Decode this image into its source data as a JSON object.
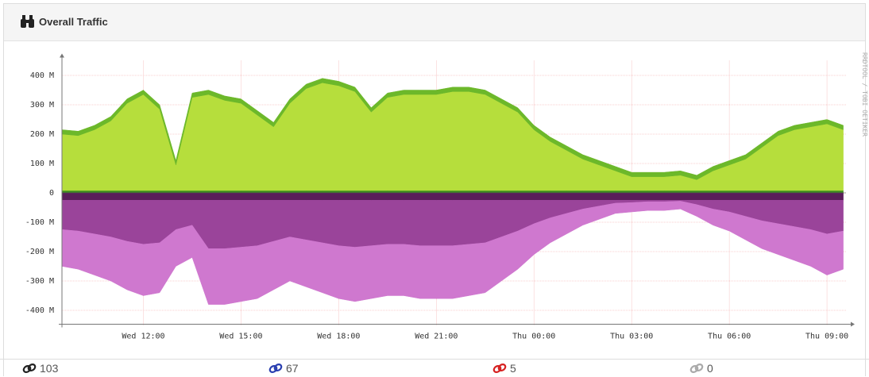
{
  "panel": {
    "title": "Overall Traffic"
  },
  "chart_data": {
    "type": "area",
    "stacked": true,
    "x": [
      "Wed 09:30",
      "Wed 10:00",
      "Wed 10:30",
      "Wed 11:00",
      "Wed 11:30",
      "Wed 12:00",
      "Wed 12:30",
      "Wed 13:00",
      "Wed 13:30",
      "Wed 14:00",
      "Wed 14:30",
      "Wed 15:00",
      "Wed 15:30",
      "Wed 16:00",
      "Wed 16:30",
      "Wed 17:00",
      "Wed 17:30",
      "Wed 18:00",
      "Wed 18:30",
      "Wed 19:00",
      "Wed 19:30",
      "Wed 20:00",
      "Wed 20:30",
      "Wed 21:00",
      "Wed 21:30",
      "Wed 22:00",
      "Wed 22:30",
      "Wed 23:00",
      "Wed 23:30",
      "Thu 00:00",
      "Thu 00:30",
      "Thu 01:00",
      "Thu 01:30",
      "Thu 02:00",
      "Thu 02:30",
      "Thu 03:00",
      "Thu 03:30",
      "Thu 04:00",
      "Thu 04:30",
      "Thu 05:00",
      "Thu 05:30",
      "Thu 06:00",
      "Thu 06:30",
      "Thu 07:00",
      "Thu 07:30",
      "Thu 08:00",
      "Thu 08:30",
      "Thu 09:00",
      "Thu 09:30"
    ],
    "series": [
      {
        "color": "#3d8c1e",
        "values": [
          8,
          8,
          8,
          8,
          8,
          8,
          8,
          8,
          8,
          8,
          8,
          8,
          8,
          8,
          8,
          8,
          8,
          8,
          8,
          8,
          8,
          8,
          8,
          8,
          8,
          8,
          8,
          8,
          8,
          8,
          8,
          8,
          8,
          8,
          8,
          8,
          8,
          8,
          8,
          8,
          8,
          8,
          8,
          8,
          8,
          8,
          8,
          8,
          8
        ]
      },
      {
        "color": "#b6de3c",
        "values": [
          192,
          187,
          207,
          237,
          297,
          327,
          277,
          87,
          317,
          327,
          307,
          297,
          257,
          217,
          297,
          347,
          367,
          357,
          337,
          267,
          317,
          327,
          327,
          327,
          337,
          337,
          327,
          297,
          267,
          207,
          167,
          137,
          107,
          87,
          67,
          47,
          47,
          47,
          52,
          37,
          67,
          87,
          107,
          147,
          187,
          207,
          217,
          227,
          207
        ]
      },
      {
        "color": "#6cb82a",
        "values": [
          15,
          15,
          15,
          15,
          15,
          15,
          15,
          15,
          15,
          15,
          15,
          15,
          15,
          15,
          15,
          15,
          15,
          15,
          15,
          15,
          15,
          15,
          15,
          15,
          15,
          15,
          15,
          15,
          15,
          15,
          15,
          15,
          15,
          15,
          15,
          15,
          15,
          15,
          15,
          15,
          15,
          15,
          15,
          15,
          15,
          15,
          15,
          15,
          15
        ]
      },
      {
        "color": "#5a1d5a",
        "values": [
          -25,
          -25,
          -25,
          -25,
          -25,
          -25,
          -25,
          -25,
          -25,
          -25,
          -25,
          -25,
          -25,
          -25,
          -25,
          -25,
          -25,
          -25,
          -25,
          -25,
          -25,
          -25,
          -25,
          -25,
          -25,
          -25,
          -25,
          -25,
          -25,
          -25,
          -25,
          -25,
          -25,
          -25,
          -25,
          -25,
          -25,
          -25,
          -25,
          -25,
          -25,
          -25,
          -25,
          -25,
          -25,
          -25,
          -25,
          -25,
          -25
        ]
      },
      {
        "color": "#9a449a",
        "values": [
          -100,
          -105,
          -115,
          -125,
          -140,
          -150,
          -145,
          -100,
          -85,
          -165,
          -165,
          -160,
          -155,
          -140,
          -125,
          -135,
          -145,
          -155,
          -160,
          -155,
          -150,
          -150,
          -155,
          -155,
          -155,
          -150,
          -145,
          -125,
          -105,
          -80,
          -60,
          -45,
          -30,
          -20,
          -10,
          -8,
          -5,
          -5,
          -3,
          -15,
          -30,
          -40,
          -55,
          -70,
          -80,
          -90,
          -100,
          -115,
          -105
        ]
      },
      {
        "color": "#cf78cf",
        "values": [
          -125,
          -130,
          -140,
          -150,
          -165,
          -175,
          -170,
          -125,
          -110,
          -190,
          -190,
          -185,
          -180,
          -165,
          -150,
          -160,
          -170,
          -180,
          -185,
          -180,
          -175,
          -175,
          -180,
          -180,
          -180,
          -175,
          -170,
          -150,
          -130,
          -105,
          -85,
          -70,
          -55,
          -45,
          -35,
          -32,
          -30,
          -30,
          -27,
          -40,
          -55,
          -65,
          -80,
          -95,
          -105,
          -115,
          -125,
          -140,
          -130
        ]
      }
    ],
    "xlim": [
      "Wed 09:30",
      "Thu 09:35"
    ],
    "xticks": [
      "Wed 12:00",
      "Wed 15:00",
      "Wed 18:00",
      "Wed 21:00",
      "Thu 00:00",
      "Thu 03:00",
      "Thu 06:00",
      "Thu 09:00"
    ],
    "ylim": [
      -450,
      450
    ],
    "yticks": [
      {
        "value": 400,
        "label": "400 M"
      },
      {
        "value": 300,
        "label": "300 M"
      },
      {
        "value": 200,
        "label": "200 M"
      },
      {
        "value": 100,
        "label": "100 M"
      },
      0,
      {
        "value": -100,
        "label": "-100 M"
      },
      {
        "value": -200,
        "label": "-200 M"
      },
      {
        "value": -300,
        "label": "-300 M"
      },
      {
        "value": -400,
        "label": "-400 M"
      }
    ],
    "grid": true,
    "watermark": "RRDTOOL / TOBI OETIKER"
  },
  "footer": [
    {
      "color": "#222222",
      "value": 103
    },
    {
      "color": "#2a3fb0",
      "value": 67
    },
    {
      "color": "#d62020",
      "value": 5
    },
    {
      "color": "#aaaaaa",
      "value": 0
    }
  ]
}
